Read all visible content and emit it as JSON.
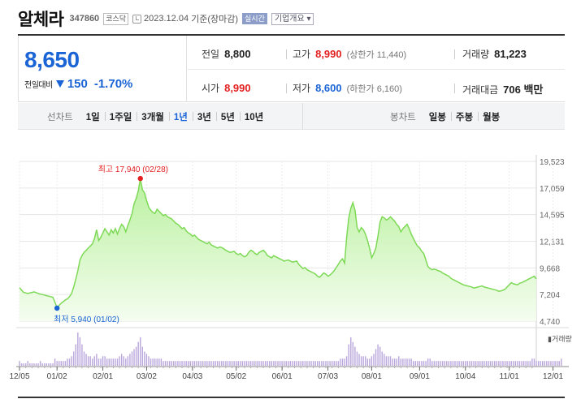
{
  "header": {
    "name": "알체라",
    "code": "347860",
    "market": "코스닥",
    "date": "2023.12.04",
    "basis": "기준(장마감)",
    "realtime": "실시간",
    "company_info": "기업개요 ▾"
  },
  "price": {
    "current": "8,650",
    "change_label": "전일대비",
    "change": "150",
    "change_pct": "-1.70%",
    "direction": "down",
    "prev_close_label": "전일",
    "prev_close": "8,800",
    "high_label": "고가",
    "high": "8,990",
    "upper_limit": "(상한가 11,440)",
    "volume_label": "거래량",
    "volume": "81,223",
    "open_label": "시가",
    "open": "8,990",
    "low_label": "저가",
    "low": "8,600",
    "lower_limit": "(하한가 6,160)",
    "turnover_label": "거래대금",
    "turnover": "706 백만"
  },
  "tabs": {
    "line_title": "선차트",
    "line_periods": [
      "1일",
      "1주일",
      "3개월",
      "1년",
      "3년",
      "5년",
      "10년"
    ],
    "line_active": "1년",
    "candle_title": "봉차트",
    "candle_periods": [
      "일봉",
      "주봉",
      "월봉"
    ]
  },
  "colors": {
    "accent_blue": "#1a64d6",
    "accent_red": "#e32121",
    "line_green": "#7ed957",
    "fill_green": "#d8f7c8",
    "volume_purple": "#b9a6dc"
  },
  "chart_data": {
    "type": "area",
    "y_ticks": [
      "19,523",
      "17,059",
      "14,595",
      "12,131",
      "9,668",
      "7,204",
      "4,740"
    ],
    "ylim": [
      4740,
      19523
    ],
    "x_ticks": [
      "12/05",
      "01/02",
      "02/01",
      "03/02",
      "04/03",
      "05/02",
      "06/01",
      "07/03",
      "08/01",
      "09/01",
      "10/04",
      "11/01",
      "12/01"
    ],
    "x_tick_index": [
      0,
      18,
      40,
      61,
      83,
      104,
      126,
      148,
      169,
      192,
      214,
      235,
      256
    ],
    "volume_label": "거래량",
    "high_annotation": "최고 17,940 (02/28)",
    "low_annotation": "최저 5,940 (01/02)",
    "high_index": 58,
    "high_value": 17940,
    "low_index": 18,
    "low_value": 5940,
    "values": [
      7850,
      7600,
      7400,
      7350,
      7300,
      7350,
      7400,
      7450,
      7380,
      7300,
      7250,
      7200,
      7150,
      7100,
      7050,
      7000,
      6950,
      6500,
      5940,
      6200,
      6400,
      6550,
      6700,
      6800,
      7000,
      7300,
      7900,
      8600,
      9400,
      10400,
      10800,
      11100,
      11300,
      11500,
      11700,
      11900,
      12400,
      13200,
      12200,
      12500,
      12900,
      13300,
      13000,
      12700,
      13200,
      12900,
      13300,
      12800,
      13300,
      13700,
      13500,
      13000,
      13600,
      14100,
      14700,
      15600,
      16100,
      16800,
      17940,
      16900,
      16600,
      15900,
      15300,
      15000,
      14800,
      14700,
      15100,
      14900,
      14700,
      14500,
      14600,
      14400,
      14300,
      14200,
      14000,
      13800,
      13700,
      13500,
      13300,
      13400,
      13100,
      12900,
      12800,
      12600,
      12700,
      12500,
      12300,
      12200,
      12100,
      12000,
      11900,
      12050,
      11800,
      11700,
      11600,
      11500,
      11600,
      11550,
      11450,
      11300,
      11200,
      11100,
      11150,
      11200,
      11000,
      10900,
      11000,
      10800,
      10700,
      10800,
      11100,
      11300,
      11200,
      11000,
      10900,
      11100,
      11200,
      11300,
      11100,
      10800,
      10700,
      10600,
      10800,
      10700,
      10600,
      10500,
      10400,
      10300,
      10350,
      10400,
      10300,
      10200,
      10250,
      10300,
      10000,
      9800,
      9600,
      9700,
      9500,
      9400,
      9300,
      9200,
      9100,
      8900,
      8800,
      9000,
      9200,
      9100,
      8900,
      9000,
      9200,
      9400,
      9700,
      10000,
      10300,
      10500,
      10100,
      12500,
      14300,
      15200,
      15700,
      15000,
      13400,
      13000,
      13400,
      13200,
      12800,
      12200,
      11500,
      10600,
      11000,
      11500,
      12600,
      13900,
      14400,
      14300,
      14100,
      14200,
      14400,
      14200,
      14000,
      13700,
      13500,
      13000,
      13300,
      13500,
      13700,
      13300,
      12800,
      12400,
      12000,
      11700,
      11500,
      11200,
      11000,
      10400,
      9800,
      9600,
      9500,
      9550,
      9500,
      9400,
      9350,
      9200,
      9100,
      9000,
      8900,
      8700,
      8600,
      8500,
      8400,
      8300,
      8200,
      8100,
      8050,
      8000,
      7950,
      7900,
      7800,
      7850,
      7900,
      7950,
      8000,
      7900,
      7850,
      7800,
      7750,
      7700,
      7650,
      7600,
      7500,
      7550,
      7600,
      7700,
      7900,
      8100,
      8300,
      8200,
      8150,
      8100,
      8250,
      8300,
      8400,
      8500,
      8600,
      8700,
      8800,
      8900,
      8650
    ],
    "volume_relative": [
      2,
      1,
      1,
      1,
      2,
      1,
      1,
      1,
      1,
      1,
      2,
      1,
      1,
      1,
      1,
      1,
      1,
      3,
      2,
      2,
      2,
      2,
      2,
      3,
      3,
      4,
      6,
      9,
      14,
      12,
      9,
      6,
      5,
      4,
      4,
      3,
      4,
      5,
      3,
      3,
      4,
      4,
      3,
      3,
      3,
      3,
      3,
      3,
      4,
      5,
      4,
      3,
      4,
      5,
      6,
      7,
      8,
      10,
      12,
      8,
      6,
      5,
      4,
      3,
      3,
      3,
      3,
      3,
      3,
      2,
      2,
      2,
      2,
      2,
      2,
      2,
      2,
      2,
      2,
      2,
      2,
      2,
      2,
      2,
      2,
      2,
      2,
      2,
      2,
      2,
      2,
      2,
      2,
      2,
      2,
      2,
      2,
      2,
      2,
      2,
      2,
      2,
      2,
      2,
      2,
      2,
      2,
      2,
      2,
      2,
      2,
      2,
      2,
      2,
      2,
      2,
      2,
      2,
      2,
      2,
      2,
      2,
      2,
      2,
      2,
      2,
      2,
      2,
      2,
      2,
      2,
      2,
      2,
      2,
      2,
      2,
      2,
      2,
      2,
      2,
      2,
      2,
      2,
      2,
      2,
      2,
      2,
      2,
      2,
      2,
      2,
      2,
      2,
      2,
      3,
      3,
      3,
      4,
      9,
      12,
      10,
      8,
      6,
      5,
      4,
      4,
      4,
      3,
      3,
      4,
      5,
      7,
      9,
      8,
      6,
      5,
      4,
      4,
      4,
      3,
      3,
      3,
      4,
      3,
      3,
      3,
      3,
      3,
      3,
      2,
      2,
      2,
      2,
      2,
      2,
      2,
      3,
      3,
      2,
      2,
      2,
      2,
      2,
      2,
      2,
      2,
      2,
      2,
      2,
      2,
      2,
      2,
      2,
      2,
      2,
      2,
      2,
      2,
      2,
      2,
      2,
      2,
      2,
      2,
      2,
      2,
      2,
      2,
      2,
      2,
      2,
      2,
      2,
      2,
      2,
      2,
      2,
      2,
      2,
      2,
      2,
      2,
      2,
      2,
      2,
      2,
      3,
      3,
      2,
      2,
      2,
      2,
      2,
      2,
      2,
      2,
      2,
      2,
      2,
      2,
      3
    ]
  }
}
